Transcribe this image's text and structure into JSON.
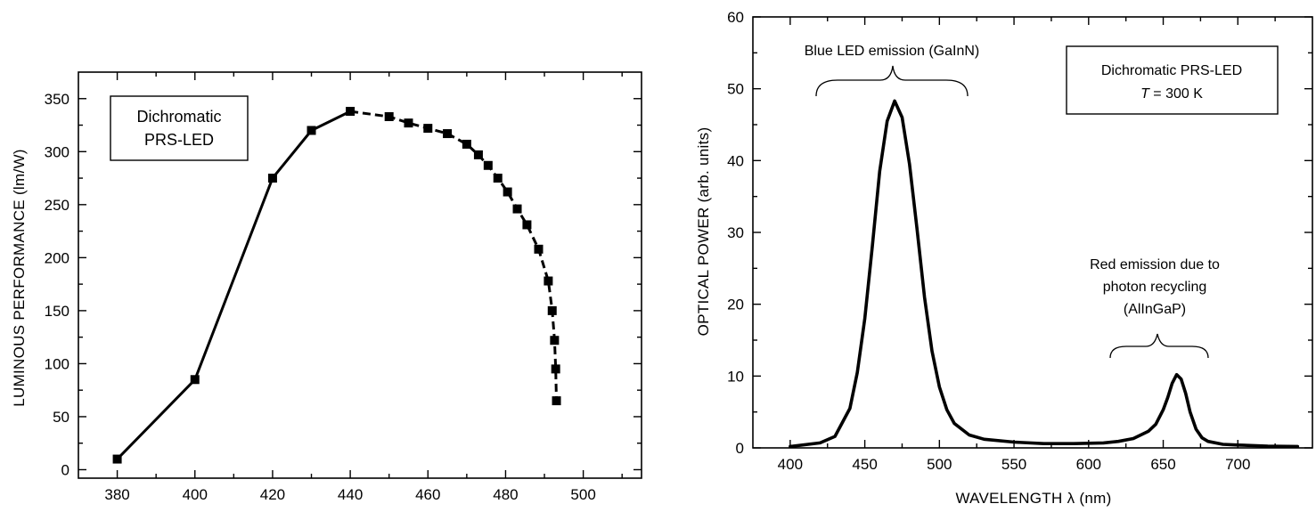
{
  "chart_data": [
    {
      "type": "line",
      "xlabel": "",
      "ylabel": "LUMINOUS  PERFORMANCE  (lm/W)",
      "xlim": [
        370,
        515
      ],
      "ylim": [
        -8,
        375
      ],
      "xticks": [
        380,
        400,
        420,
        440,
        460,
        480,
        500
      ],
      "yticks": [
        0,
        50,
        100,
        150,
        200,
        250,
        300,
        350
      ],
      "legend_box": {
        "lines": [
          "Dichromatic",
          "PRS-LED"
        ],
        "placement": "top-left"
      },
      "series": [
        {
          "marker": "square",
          "x": [
            380,
            400,
            420,
            430,
            440,
            450,
            455,
            460,
            465,
            470,
            473,
            475.5,
            478,
            480.5,
            483,
            485.5,
            488.5,
            491,
            492,
            492.6,
            492.9,
            493.1
          ],
          "y": [
            10,
            85,
            275,
            320,
            338,
            333,
            327,
            322,
            317,
            307,
            297,
            287,
            275,
            262,
            246,
            231,
            208,
            178,
            150,
            122,
            95,
            65
          ]
        }
      ]
    },
    {
      "type": "line",
      "xlabel": "WAVELENGTH  λ  (nm)",
      "ylabel": "OPTICAL  POWER  (arb. units)",
      "xlim": [
        375,
        750
      ],
      "ylim": [
        0,
        60
      ],
      "xticks": [
        400,
        450,
        500,
        550,
        600,
        650,
        700
      ],
      "yticks": [
        0,
        10,
        20,
        30,
        40,
        50,
        60
      ],
      "legend_box": {
        "line1": "Dichromatic PRS-LED",
        "line2_italic": "T",
        "line2_rest": " = 300 K",
        "placement": "top-right"
      },
      "annotations": [
        {
          "text": "Blue LED emission (GaInN)"
        },
        {
          "lines": [
            "Red emission due to",
            "photon recycling",
            "(AlInGaP)"
          ]
        }
      ],
      "series": [
        {
          "x": [
            400,
            420,
            430,
            440,
            445,
            450,
            455,
            460,
            465,
            470,
            475,
            480,
            485,
            490,
            495,
            500,
            505,
            510,
            520,
            530,
            550,
            570,
            590,
            610,
            620,
            630,
            640,
            645,
            650,
            653,
            656,
            659,
            662,
            665,
            668,
            672,
            676,
            680,
            690,
            700,
            720,
            740
          ],
          "y": [
            0.2,
            0.7,
            1.6,
            5.5,
            10.5,
            18,
            28,
            38.5,
            45.5,
            48.3,
            46,
            39.5,
            30.5,
            21,
            13.5,
            8.5,
            5.3,
            3.4,
            1.8,
            1.2,
            0.8,
            0.6,
            0.6,
            0.7,
            0.9,
            1.3,
            2.3,
            3.3,
            5.3,
            7,
            9,
            10.2,
            9.6,
            7.6,
            5,
            2.6,
            1.4,
            0.9,
            0.5,
            0.4,
            0.25,
            0.2
          ]
        }
      ]
    }
  ]
}
